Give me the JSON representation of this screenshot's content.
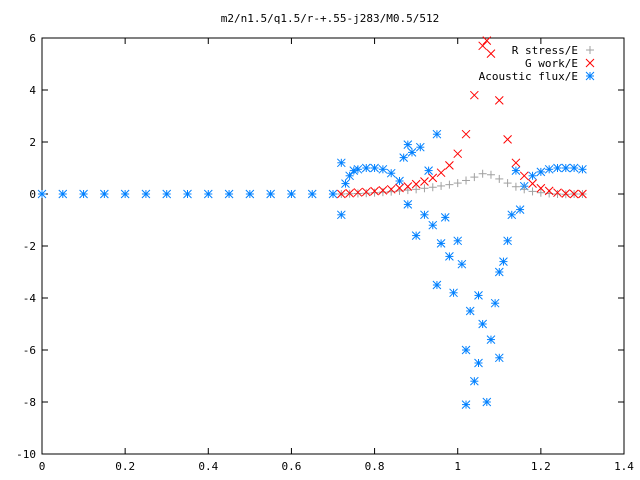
{
  "chart_data": {
    "type": "scatter",
    "title": "m2/n1.5/q1.5/r-+.55-j283/M0.5/512",
    "xlabel": "",
    "ylabel": "",
    "xlim": [
      0,
      1.4
    ],
    "ylim": [
      -10,
      6
    ],
    "x_ticks": [
      "0",
      "0.2",
      "0.4",
      "0.6",
      "0.8",
      "1",
      "1.2",
      "1.4"
    ],
    "y_ticks": [
      "6",
      "4",
      "2",
      "0",
      "-2",
      "-4",
      "-6",
      "-8",
      "-10"
    ],
    "grid": false,
    "legend_position": "top-right",
    "series": [
      {
        "name": "R stress/E",
        "marker": "plus",
        "color": "#a0a0a0",
        "points": [
          [
            0.72,
            0.0
          ],
          [
            0.74,
            0.01
          ],
          [
            0.76,
            0.02
          ],
          [
            0.78,
            0.03
          ],
          [
            0.8,
            0.05
          ],
          [
            0.82,
            0.07
          ],
          [
            0.84,
            0.09
          ],
          [
            0.86,
            0.12
          ],
          [
            0.88,
            0.15
          ],
          [
            0.9,
            0.18
          ],
          [
            0.92,
            0.22
          ],
          [
            0.94,
            0.26
          ],
          [
            0.96,
            0.31
          ],
          [
            0.98,
            0.36
          ],
          [
            1.0,
            0.42
          ],
          [
            1.02,
            0.52
          ],
          [
            1.04,
            0.65
          ],
          [
            1.06,
            0.78
          ],
          [
            1.08,
            0.74
          ],
          [
            1.1,
            0.58
          ],
          [
            1.12,
            0.42
          ],
          [
            1.14,
            0.28
          ],
          [
            1.16,
            0.18
          ],
          [
            1.18,
            0.1
          ],
          [
            1.2,
            0.05
          ],
          [
            1.22,
            0.02
          ],
          [
            1.24,
            0.0
          ],
          [
            1.26,
            -0.01
          ],
          [
            1.28,
            0.0
          ],
          [
            1.3,
            0.0
          ]
        ]
      },
      {
        "name": "G work/E",
        "marker": "cross",
        "color": "#ff0000",
        "points": [
          [
            0.72,
            0.0
          ],
          [
            0.74,
            0.03
          ],
          [
            0.76,
            0.06
          ],
          [
            0.78,
            0.08
          ],
          [
            0.8,
            0.11
          ],
          [
            0.82,
            0.14
          ],
          [
            0.84,
            0.18
          ],
          [
            0.86,
            0.23
          ],
          [
            0.88,
            0.29
          ],
          [
            0.9,
            0.38
          ],
          [
            0.92,
            0.48
          ],
          [
            0.94,
            0.62
          ],
          [
            0.96,
            0.82
          ],
          [
            0.98,
            1.1
          ],
          [
            1.0,
            1.55
          ],
          [
            1.02,
            2.3
          ],
          [
            1.04,
            3.8
          ],
          [
            1.06,
            5.7
          ],
          [
            1.07,
            5.9
          ],
          [
            1.08,
            5.4
          ],
          [
            1.1,
            3.6
          ],
          [
            1.12,
            2.1
          ],
          [
            1.14,
            1.2
          ],
          [
            1.16,
            0.7
          ],
          [
            1.18,
            0.4
          ],
          [
            1.2,
            0.22
          ],
          [
            1.22,
            0.12
          ],
          [
            1.24,
            0.05
          ],
          [
            1.26,
            0.02
          ],
          [
            1.28,
            0.0
          ],
          [
            1.3,
            0.0
          ]
        ]
      },
      {
        "name": "Acoustic flux/E",
        "marker": "star",
        "color": "#0080ff",
        "points": [
          [
            0.0,
            0.0
          ],
          [
            0.05,
            0.0
          ],
          [
            0.1,
            0.0
          ],
          [
            0.15,
            0.0
          ],
          [
            0.2,
            0.0
          ],
          [
            0.25,
            0.0
          ],
          [
            0.3,
            0.0
          ],
          [
            0.35,
            0.0
          ],
          [
            0.4,
            0.0
          ],
          [
            0.45,
            0.0
          ],
          [
            0.5,
            0.0
          ],
          [
            0.55,
            0.0
          ],
          [
            0.6,
            0.0
          ],
          [
            0.65,
            0.0
          ],
          [
            0.7,
            0.0
          ],
          [
            0.72,
            1.2
          ],
          [
            0.72,
            -0.8
          ],
          [
            0.73,
            0.4
          ],
          [
            0.74,
            0.7
          ],
          [
            0.75,
            0.9
          ],
          [
            0.76,
            0.95
          ],
          [
            0.78,
            1.0
          ],
          [
            0.8,
            1.0
          ],
          [
            0.82,
            0.95
          ],
          [
            0.84,
            0.8
          ],
          [
            0.86,
            0.5
          ],
          [
            0.87,
            1.4
          ],
          [
            0.88,
            1.9
          ],
          [
            0.88,
            -0.4
          ],
          [
            0.89,
            1.6
          ],
          [
            0.9,
            -1.6
          ],
          [
            0.91,
            1.8
          ],
          [
            0.92,
            -0.8
          ],
          [
            0.93,
            0.9
          ],
          [
            0.94,
            -1.2
          ],
          [
            0.95,
            2.3
          ],
          [
            0.95,
            -3.5
          ],
          [
            0.96,
            -1.9
          ],
          [
            0.97,
            -0.9
          ],
          [
            0.98,
            -2.4
          ],
          [
            0.99,
            -3.8
          ],
          [
            1.0,
            -1.8
          ],
          [
            1.01,
            -2.7
          ],
          [
            1.02,
            -6.0
          ],
          [
            1.02,
            -8.1
          ],
          [
            1.03,
            -4.5
          ],
          [
            1.04,
            -7.2
          ],
          [
            1.05,
            -3.9
          ],
          [
            1.05,
            -6.5
          ],
          [
            1.06,
            -5.0
          ],
          [
            1.07,
            -8.0
          ],
          [
            1.08,
            -5.6
          ],
          [
            1.09,
            -4.2
          ],
          [
            1.1,
            -3.0
          ],
          [
            1.1,
            -6.3
          ],
          [
            1.11,
            -2.6
          ],
          [
            1.12,
            -1.8
          ],
          [
            1.13,
            -0.8
          ],
          [
            1.14,
            0.9
          ],
          [
            1.15,
            -0.6
          ],
          [
            1.16,
            0.3
          ],
          [
            1.18,
            0.7
          ],
          [
            1.2,
            0.85
          ],
          [
            1.22,
            0.95
          ],
          [
            1.24,
            1.0
          ],
          [
            1.26,
            1.0
          ],
          [
            1.28,
            1.0
          ],
          [
            1.3,
            0.95
          ]
        ]
      }
    ]
  }
}
